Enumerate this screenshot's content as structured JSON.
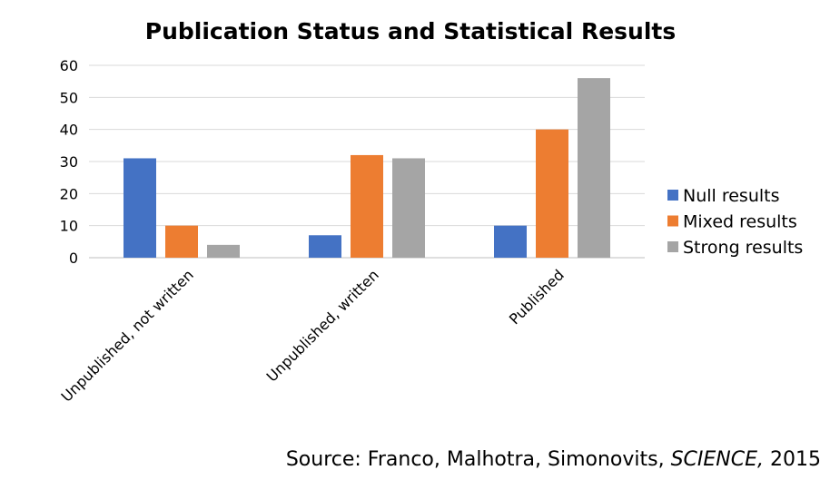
{
  "chart_data": {
    "type": "bar",
    "title": "Publication Status and Statistical Results",
    "categories": [
      "Unpublished, not written",
      "Unpublished, written",
      "Published"
    ],
    "series": [
      {
        "name": "Null results",
        "color": "#4472C4",
        "values": [
          31,
          7,
          10
        ]
      },
      {
        "name": "Mixed results",
        "color": "#ED7D31",
        "values": [
          10,
          32,
          40
        ]
      },
      {
        "name": "Strong results",
        "color": "#A5A5A5",
        "values": [
          4,
          31,
          56
        ]
      }
    ],
    "ylim": [
      0,
      60
    ],
    "yticks": [
      0,
      10,
      20,
      30,
      40,
      50,
      60
    ],
    "grid": true,
    "legend_position": "right",
    "xlabel": "",
    "ylabel": ""
  },
  "source": {
    "prefix": "Source: Franco, Malhotra, Simonovits, ",
    "journal": "SCIENCE,",
    "year": " 2015"
  }
}
